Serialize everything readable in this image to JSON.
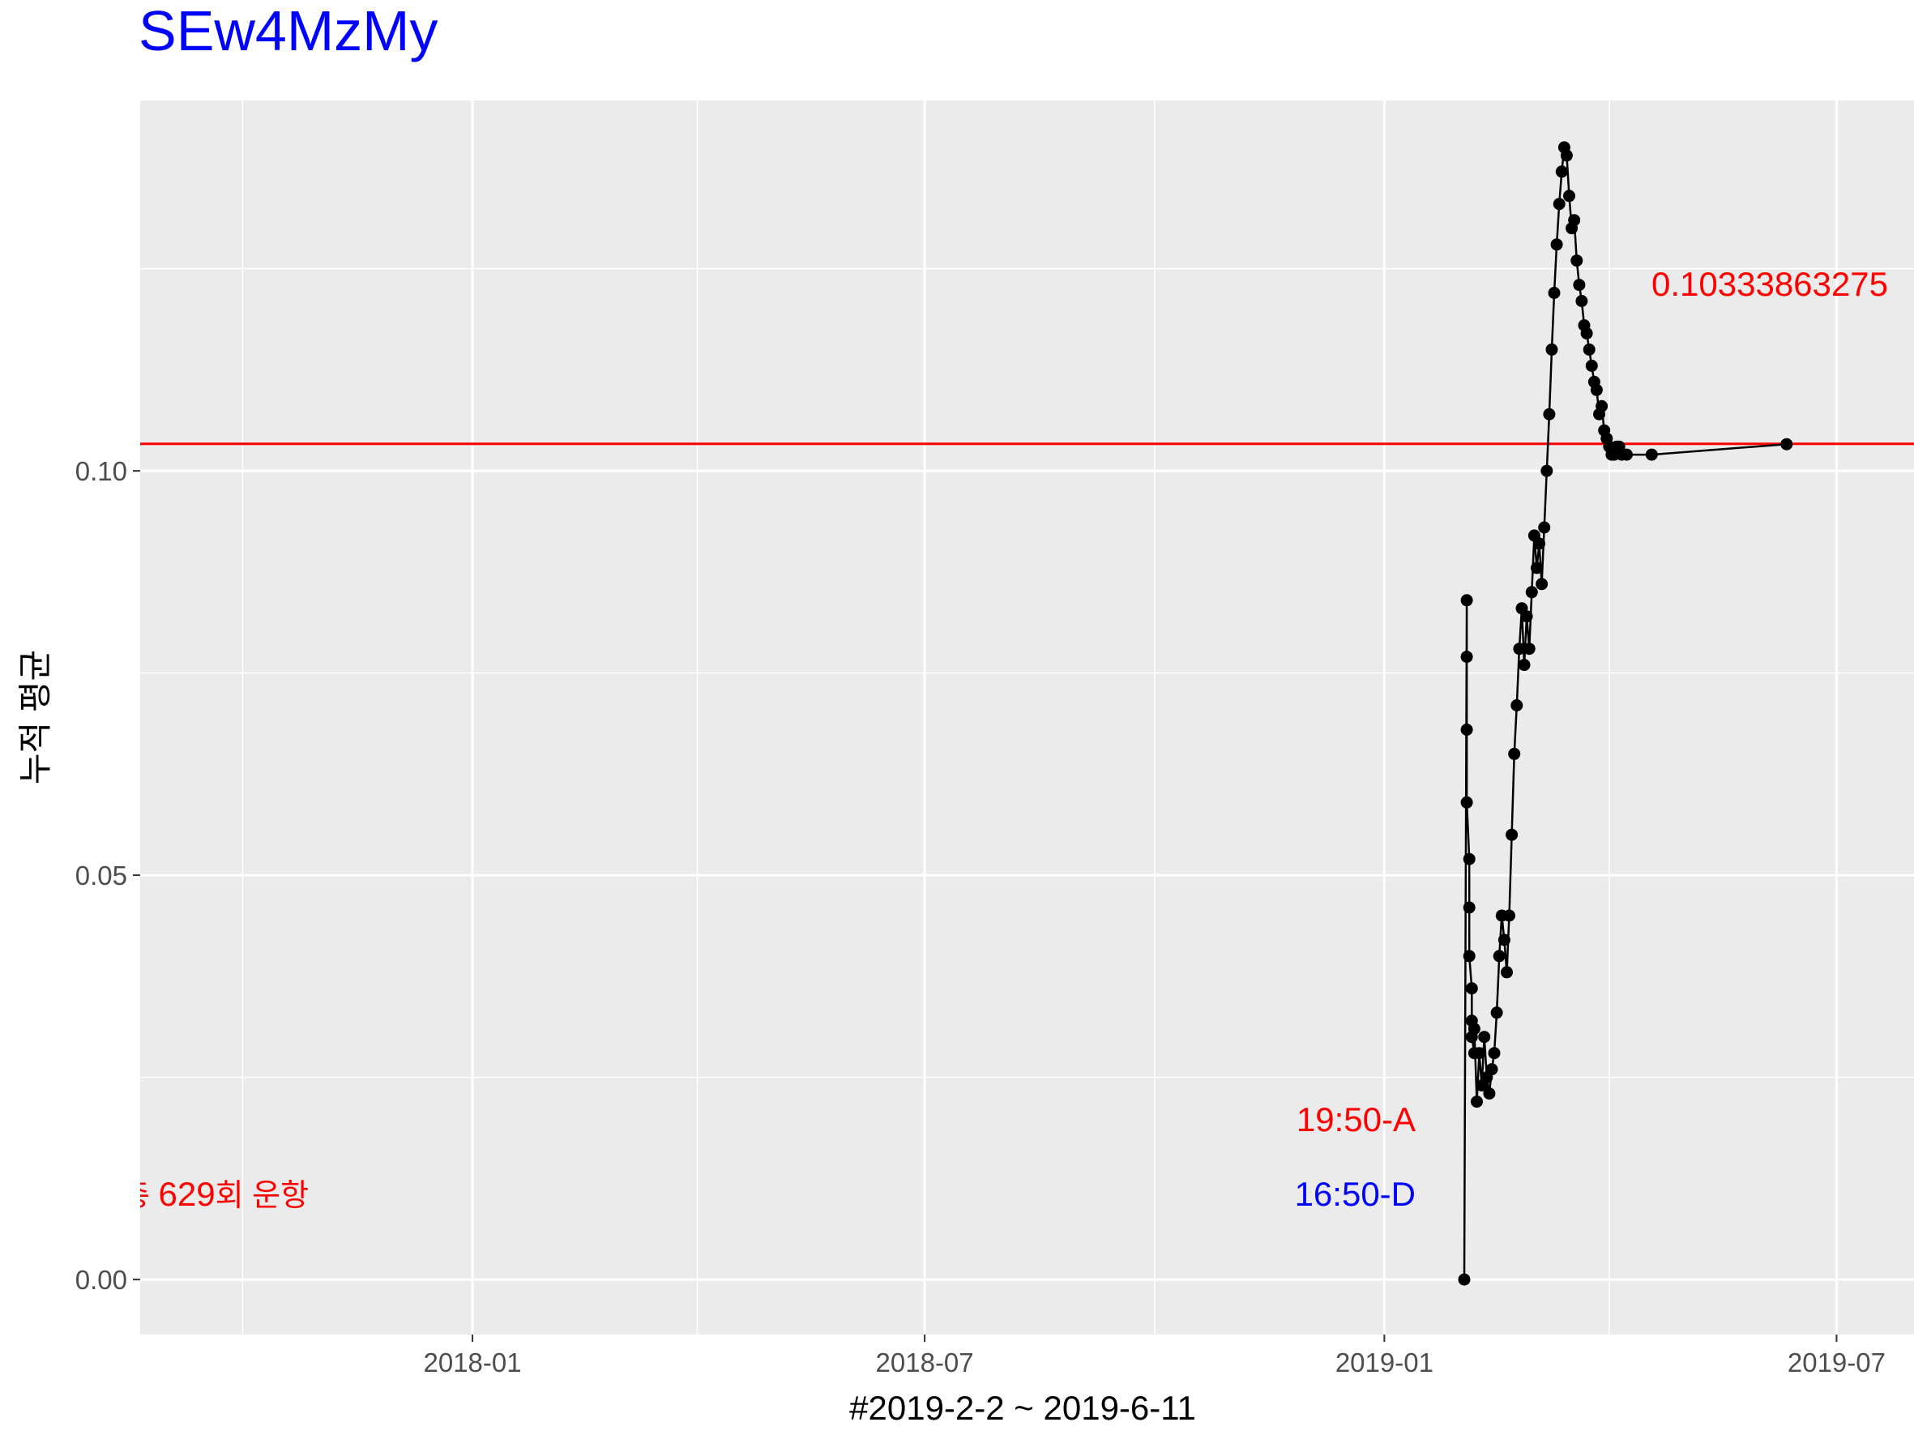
{
  "chart_data": {
    "type": "line",
    "title": "SEw4MzMy",
    "xlabel": "#2019-2-2 ~ 2019-6-11",
    "ylabel": "누적 평균",
    "x_range": [
      "2017-08-21",
      "2019-08-01"
    ],
    "ylim": [
      -0.0068,
      0.1458
    ],
    "x_ticks": [
      {
        "date": "2018-01-01",
        "label": "2018-01"
      },
      {
        "date": "2018-07-01",
        "label": "2018-07"
      },
      {
        "date": "2019-01-01",
        "label": "2019-01"
      },
      {
        "date": "2019-07-01",
        "label": "2019-07"
      }
    ],
    "x_minor_ticks": [
      "2017-10-01",
      "2018-04-01",
      "2018-10-01",
      "2019-04-01"
    ],
    "y_ticks": [
      {
        "value": 0.0,
        "label": "0.00"
      },
      {
        "value": 0.05,
        "label": "0.05"
      },
      {
        "value": 0.1,
        "label": "0.10"
      }
    ],
    "y_minor_ticks": [
      0.025,
      0.075,
      0.125
    ],
    "hline": {
      "value": 0.1033386,
      "color": "#ff0000"
    },
    "grid": true,
    "panel_background": "#ebebeb",
    "series": [
      {
        "color": "#000000",
        "x": [
          "2019-02-02",
          "2019-02-03",
          "2019-02-03",
          "2019-02-03",
          "2019-02-03",
          "2019-02-04",
          "2019-02-04",
          "2019-02-04",
          "2019-02-05",
          "2019-02-05",
          "2019-02-05",
          "2019-02-06",
          "2019-02-06",
          "2019-02-07",
          "2019-02-08",
          "2019-02-09",
          "2019-02-10",
          "2019-02-11",
          "2019-02-12",
          "2019-02-13",
          "2019-02-14",
          "2019-02-15",
          "2019-02-16",
          "2019-02-17",
          "2019-02-18",
          "2019-02-19",
          "2019-02-20",
          "2019-02-21",
          "2019-02-22",
          "2019-02-23",
          "2019-02-24",
          "2019-02-25",
          "2019-02-26",
          "2019-02-27",
          "2019-02-28",
          "2019-03-01",
          "2019-03-02",
          "2019-03-03",
          "2019-03-04",
          "2019-03-05",
          "2019-03-06",
          "2019-03-07",
          "2019-03-08",
          "2019-03-09",
          "2019-03-10",
          "2019-03-11",
          "2019-03-12",
          "2019-03-13",
          "2019-03-14",
          "2019-03-15",
          "2019-03-16",
          "2019-03-17",
          "2019-03-18",
          "2019-03-19",
          "2019-03-20",
          "2019-03-21",
          "2019-03-22",
          "2019-03-23",
          "2019-03-24",
          "2019-03-25",
          "2019-03-26",
          "2019-03-27",
          "2019-03-28",
          "2019-03-29",
          "2019-03-30",
          "2019-03-31",
          "2019-04-01",
          "2019-04-02",
          "2019-04-03",
          "2019-04-04",
          "2019-04-05",
          "2019-04-06",
          "2019-04-08",
          "2019-04-18",
          "2019-06-11"
        ],
        "y": [
          0.0,
          0.084,
          0.077,
          0.068,
          0.059,
          0.052,
          0.046,
          0.04,
          0.036,
          0.032,
          0.03,
          0.028,
          0.031,
          0.022,
          0.028,
          0.024,
          0.03,
          0.025,
          0.023,
          0.026,
          0.028,
          0.033,
          0.04,
          0.045,
          0.042,
          0.038,
          0.045,
          0.055,
          0.065,
          0.071,
          0.078,
          0.083,
          0.076,
          0.082,
          0.078,
          0.085,
          0.092,
          0.088,
          0.091,
          0.086,
          0.093,
          0.1,
          0.107,
          0.115,
          0.122,
          0.128,
          0.133,
          0.137,
          0.14,
          0.139,
          0.134,
          0.13,
          0.131,
          0.126,
          0.123,
          0.121,
          0.118,
          0.117,
          0.115,
          0.113,
          0.111,
          0.11,
          0.107,
          0.108,
          0.105,
          0.104,
          0.103,
          0.102,
          0.102,
          0.103,
          0.103,
          0.102,
          0.102,
          0.102,
          0.1033
        ]
      }
    ],
    "annotations": {
      "hline_value_label": "0.10333863275",
      "arrival_label": "19:50-A",
      "departure_label": "16:50-D",
      "count_prefix": "총 ",
      "count_value": "629",
      "count_suffix": "회 운항"
    }
  }
}
